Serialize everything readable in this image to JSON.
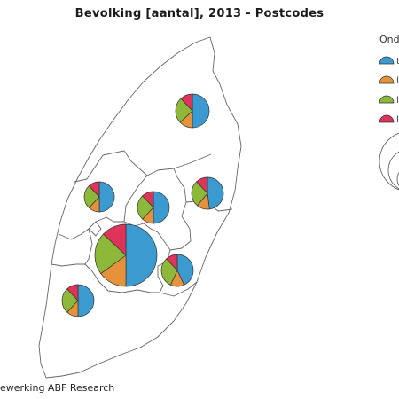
{
  "title": "Bevolking [aantal], 2013 - Postcodes",
  "legend": {
    "title": "Ond",
    "items": [
      {
        "label": "t",
        "color": "#3b9bd1"
      },
      {
        "label": "l",
        "color": "#e6923a"
      },
      {
        "label": "l",
        "color": "#8db83a"
      },
      {
        "label": "l",
        "color": "#e0335a"
      }
    ]
  },
  "source": "ewerking ABF Research",
  "colors": {
    "outline": "#666666",
    "pie_stroke": "#333333"
  },
  "chart_data": {
    "type": "pie",
    "title": "Bevolking [aantal], 2013 - Postcodes",
    "categories": [
      "t",
      "l",
      "l",
      "l"
    ],
    "series": [
      {
        "values": [
          50,
          13,
          25,
          12
        ]
      },
      {
        "values": [
          50,
          12,
          26,
          12
        ]
      },
      {
        "values": [
          50,
          12,
          26,
          12
        ]
      },
      {
        "values": [
          48,
          13,
          27,
          12
        ]
      },
      {
        "values": [
          50,
          15,
          22,
          13
        ]
      },
      {
        "values": [
          43,
          14,
          31,
          12
        ]
      },
      {
        "values": [
          50,
          12,
          26,
          12
        ]
      }
    ]
  }
}
